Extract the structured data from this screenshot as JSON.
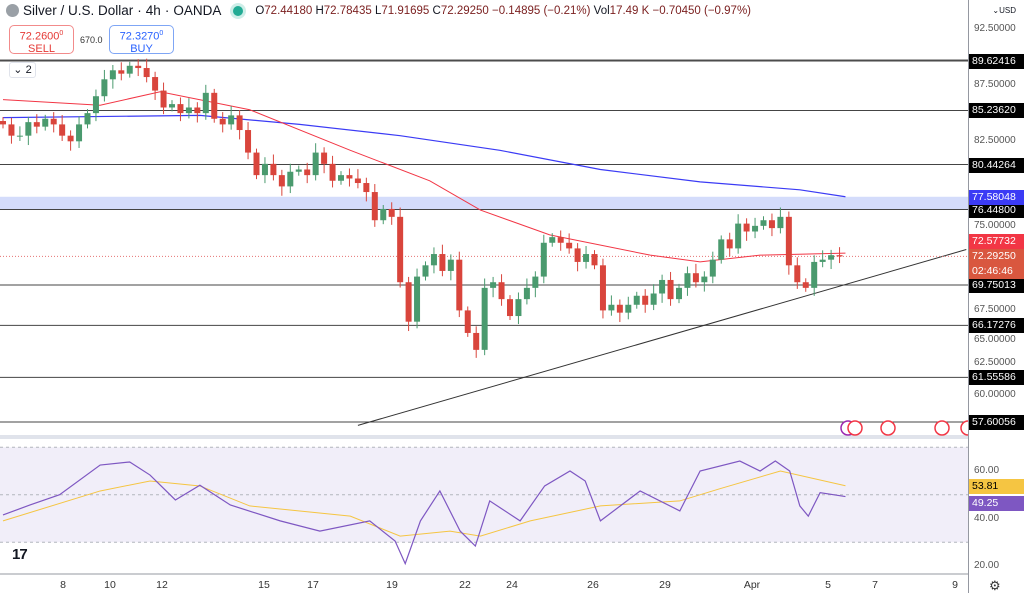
{
  "header": {
    "symbol": "Silver / U.S. Dollar",
    "timeframe": "4h",
    "broker": "OANDA",
    "sep": "·",
    "open_label": "O",
    "open": "72.44180",
    "high_label": "H",
    "high": "72.78435",
    "low_label": "L",
    "low": "71.91695",
    "close_label": "C",
    "close": "72.29250",
    "change": "−0.14895 (−0.21%)",
    "vol_label": "Vol",
    "vol": "17.49 K",
    "vol_change": "−0.70450 (−0.97%)"
  },
  "trade": {
    "sell_price": "72.2600",
    "sell_sup": "0",
    "sell_label": "SELL",
    "spread": "670.0",
    "buy_price": "72.3270",
    "buy_sup": "0",
    "buy_label": "BUY"
  },
  "indicators_collapse": {
    "icon": "chevron-down-icon",
    "count": "2"
  },
  "currency": {
    "label": "USD",
    "icon": "chevron-down-icon"
  },
  "price_ticks": [
    "92.50000",
    "87.50000",
    "82.50000",
    "75.00000",
    "67.50000",
    "65.00000",
    "62.50000",
    "60.00000"
  ],
  "levels": [
    "89.62416",
    "85.23620",
    "80.44264",
    "76.44800",
    "69.75013",
    "66.17276",
    "61.55586",
    "57.60056"
  ],
  "labels": {
    "ma200": "77.58048",
    "ma50": "72.57732",
    "last": "72.29250",
    "countdown": "02:46:46"
  },
  "rsi": {
    "ticks": [
      "60.00",
      "40.00",
      "20.00"
    ],
    "rsi_value": "49.25",
    "ma_value": "53.81"
  },
  "x_ticks": [
    "8",
    "10",
    "12",
    "15",
    "17",
    "19",
    "22",
    "24",
    "26",
    "29",
    "Apr",
    "5",
    "7",
    "9"
  ],
  "colors": {
    "up": "#4a9a6e",
    "down": "#d9453c",
    "ma50": "#f23645",
    "ma200": "#3b3bf5",
    "zone": "#d4dcfb",
    "rsi": "#7e57c2",
    "rsi_ma": "#f5c542",
    "rsi_bg": "#f1eef9"
  },
  "chart_data": {
    "type": "candlestick",
    "closes": [
      84.0,
      83.0,
      83.0,
      84.2,
      83.8,
      84.5,
      84.0,
      83.0,
      82.5,
      84.0,
      85.0,
      86.5,
      88.0,
      88.8,
      88.5,
      89.2,
      89.0,
      88.2,
      87.0,
      85.5,
      85.8,
      85.0,
      85.5,
      85.0,
      86.8,
      84.5,
      84.0,
      84.8,
      83.5,
      81.5,
      79.5,
      80.5,
      79.5,
      78.5,
      79.8,
      80.0,
      79.5,
      81.5,
      80.5,
      79.0,
      79.5,
      79.2,
      78.8,
      78.0,
      75.5,
      76.5,
      75.8,
      70.0,
      66.5,
      70.5,
      71.5,
      72.5,
      71.0,
      72.0,
      67.5,
      65.5,
      64.0,
      69.5,
      70.0,
      68.5,
      67.0,
      68.5,
      69.5,
      70.5,
      73.5,
      74.0,
      73.5,
      73.0,
      71.8,
      72.5,
      71.5,
      67.5,
      68.0,
      67.3,
      68.0,
      68.8,
      68.0,
      69.0,
      70.2,
      68.5,
      69.5,
      70.8,
      70.0,
      70.5,
      72.0,
      73.8,
      73.0,
      75.2,
      74.5,
      75.0,
      75.5,
      74.8,
      75.8,
      71.5,
      70.0,
      69.5,
      71.8,
      72.0,
      72.4,
      72.29
    ],
    "ma50": [
      [
        0,
        86.2
      ],
      [
        11.5,
        85.7
      ],
      [
        18.6,
        86.9
      ],
      [
        29.2,
        85.3
      ],
      [
        41.1,
        81.7
      ],
      [
        50.5,
        79
      ],
      [
        56.5,
        76.4
      ],
      [
        64.7,
        74.2
      ],
      [
        76.6,
        72.4
      ],
      [
        82.5,
        71.8
      ],
      [
        89.6,
        72.4
      ],
      [
        99.7,
        72.58
      ]
    ],
    "ma200": [
      [
        0,
        84.6
      ],
      [
        23.3,
        84.8
      ],
      [
        35.1,
        84
      ],
      [
        47,
        83
      ],
      [
        58.8,
        81.7
      ],
      [
        70.7,
        80
      ],
      [
        82.5,
        78.9
      ],
      [
        94.3,
        78.2
      ],
      [
        99.7,
        77.58
      ]
    ],
    "zone": [
      76.448,
      77.58
    ],
    "trendline": [
      [
        42,
        57.3
      ],
      [
        114,
        72.9
      ]
    ],
    "rsi": [
      [
        0,
        41.5
      ],
      [
        3.2,
        45.7
      ],
      [
        6.7,
        50
      ],
      [
        11.5,
        62.5
      ],
      [
        15,
        63.8
      ],
      [
        17.4,
        58.3
      ],
      [
        20.4,
        47.8
      ],
      [
        23.3,
        54
      ],
      [
        26.9,
        45.7
      ],
      [
        32.8,
        39
      ],
      [
        37.5,
        34.7
      ],
      [
        43.4,
        39
      ],
      [
        46.4,
        30.5
      ],
      [
        47.6,
        21
      ],
      [
        49.4,
        39
      ],
      [
        51.7,
        51.6
      ],
      [
        54.1,
        34.7
      ],
      [
        55.9,
        28.4
      ],
      [
        57.6,
        47.4
      ],
      [
        61.2,
        39
      ],
      [
        64.1,
        53.7
      ],
      [
        67.1,
        60
      ],
      [
        68.9,
        55.8
      ],
      [
        70.7,
        39
      ],
      [
        75.4,
        51.6
      ],
      [
        80.1,
        43.2
      ],
      [
        82.5,
        60
      ],
      [
        87.2,
        64.2
      ],
      [
        89.6,
        60
      ],
      [
        91.4,
        64.2
      ],
      [
        93.1,
        60
      ],
      [
        94.3,
        45.3
      ],
      [
        95.3,
        41
      ],
      [
        96.7,
        50.9
      ],
      [
        99.7,
        49.25
      ]
    ],
    "rsi_ma": [
      [
        0,
        39
      ],
      [
        11.5,
        51.6
      ],
      [
        17.4,
        55.8
      ],
      [
        23.3,
        53.7
      ],
      [
        29.2,
        45.3
      ],
      [
        41.1,
        41
      ],
      [
        47,
        32.6
      ],
      [
        52.9,
        34.7
      ],
      [
        56.5,
        32.6
      ],
      [
        62.4,
        39
      ],
      [
        70.7,
        45.3
      ],
      [
        80.1,
        47.4
      ],
      [
        84.9,
        52.6
      ],
      [
        92,
        60
      ],
      [
        99.7,
        53.81
      ]
    ],
    "rsi_bands": [
      70,
      30
    ]
  }
}
